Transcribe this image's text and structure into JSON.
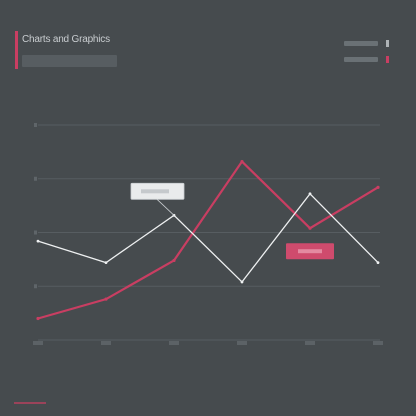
{
  "header": {
    "title": "Charts and Graphics",
    "accent_color": "#c93e62"
  },
  "chart_data": {
    "type": "line",
    "x": [
      0,
      1,
      2,
      3,
      4,
      5
    ],
    "ylim": [
      0,
      100
    ],
    "grid": true,
    "legend_position": "top-right",
    "series": [
      {
        "color": "#eef0f1",
        "values": [
          46,
          36,
          58,
          27,
          68,
          36
        ]
      },
      {
        "color": "#c93e62",
        "values": [
          10,
          19,
          37,
          83,
          52,
          71
        ]
      }
    ]
  }
}
